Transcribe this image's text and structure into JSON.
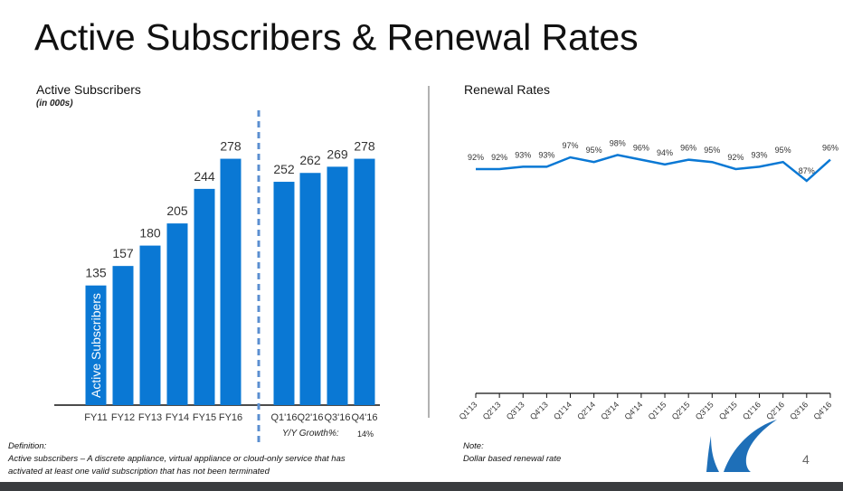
{
  "title": "Active Subscribers & Renewal Rates",
  "page_number": "4",
  "chart_data": [
    {
      "type": "bar",
      "title": "Active Subscribers",
      "subtitle": "(in 000s)",
      "ylabel": "Active Subscribers",
      "categories": [
        "FY11",
        "FY12",
        "FY13",
        "FY14",
        "FY15",
        "FY16",
        "Q1'16",
        "Q2'16",
        "Q3'16",
        "Q4'16"
      ],
      "values": [
        135,
        157,
        180,
        205,
        244,
        278,
        252,
        262,
        269,
        278
      ],
      "color": "#0a78d4",
      "growth_label": "Y/Y Growth%:",
      "growth_value": "14%"
    },
    {
      "type": "line",
      "title": "Renewal Rates",
      "categories": [
        "Q1'13",
        "Q2'13",
        "Q3'13",
        "Q4'13",
        "Q1'14",
        "Q2'14",
        "Q3'14",
        "Q4'14",
        "Q1'15",
        "Q2'15",
        "Q3'15",
        "Q4'15",
        "Q1'16",
        "Q2'16",
        "Q3'16",
        "Q4'16"
      ],
      "values": [
        92,
        92,
        93,
        93,
        97,
        95,
        98,
        96,
        94,
        96,
        95,
        92,
        93,
        95,
        87,
        96
      ],
      "unit": "%",
      "color": "#0a78d4"
    }
  ],
  "definition": {
    "label": "Definition:",
    "text1": "Active subscribers – A discrete appliance, virtual appliance or cloud-only service that has",
    "text2": "activated at least one valid subscription that has not been terminated"
  },
  "note": {
    "label": "Note:",
    "text": "Dollar based renewal rate"
  }
}
